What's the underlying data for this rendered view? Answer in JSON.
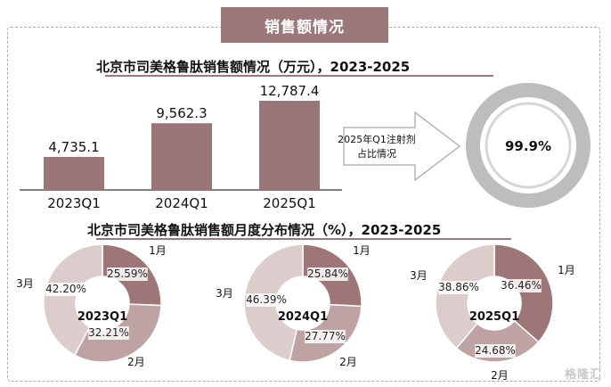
{
  "header": {
    "label": "销售额情况"
  },
  "bar_title": "北京市司美格鲁肽销售额情况（万元），2023-2025",
  "pie_title": "北京市司美格鲁肽销售额月度分布情况（%），2023-2025",
  "arrow_label_line1": "2025年Q1注射剂",
  "arrow_label_line2": "占比情况",
  "share_ring": {
    "value": 99.9,
    "label": "99.9%"
  },
  "watermark": "格隆汇",
  "colors": {
    "bar": "#9b7678",
    "jan": "#9e7678",
    "feb": "#bfa3a4",
    "mar": "#dccccc",
    "ring": "#bdbdbd",
    "header": "#9c787a"
  },
  "chart_data": [
    {
      "type": "bar",
      "title": "北京市司美格鲁肽销售额情况（万元），2023-2025",
      "categories": [
        "2023Q1",
        "2024Q1",
        "2025Q1"
      ],
      "values": [
        4735.1,
        9562.3,
        12787.4
      ],
      "value_labels": [
        "4,735.1",
        "9,562.3",
        "12,787.4"
      ],
      "ylim": [
        0,
        13500
      ]
    },
    {
      "type": "pie",
      "title": "2023Q1",
      "labels": [
        "1月",
        "2月",
        "3月"
      ],
      "values": [
        25.59,
        32.21,
        42.2
      ],
      "value_labels": [
        "25.59%",
        "32.21%",
        "42.20%"
      ]
    },
    {
      "type": "pie",
      "title": "2024Q1",
      "labels": [
        "1月",
        "2月",
        "3月"
      ],
      "values": [
        25.84,
        27.77,
        46.39
      ],
      "value_labels": [
        "25.84%",
        "27.77%",
        "46.39%"
      ]
    },
    {
      "type": "pie",
      "title": "2025Q1",
      "labels": [
        "1月",
        "2月",
        "3月"
      ],
      "values": [
        36.46,
        24.68,
        38.86
      ],
      "value_labels": [
        "36.46%",
        "24.68%",
        "38.86%"
      ]
    }
  ]
}
